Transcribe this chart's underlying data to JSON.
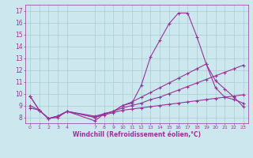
{
  "background_color": "#cce8ee",
  "grid_color": "#aacccc",
  "line_color": "#993399",
  "marker": "+",
  "marker_size": 3,
  "xlim": [
    -0.5,
    23.5
  ],
  "ylim": [
    7.5,
    17.5
  ],
  "yticks": [
    8,
    9,
    10,
    11,
    12,
    13,
    14,
    15,
    16,
    17
  ],
  "xticks": [
    0,
    1,
    2,
    3,
    4,
    7,
    8,
    9,
    10,
    11,
    12,
    13,
    14,
    15,
    16,
    17,
    18,
    19,
    20,
    21,
    22,
    23
  ],
  "xlabel": "Windchill (Refroidissement éolien,°C)",
  "series": [
    [
      9.8,
      8.6,
      7.9,
      8.0,
      8.5,
      null,
      null,
      7.7,
      8.3,
      8.5,
      9.0,
      9.2,
      10.7,
      13.1,
      14.5,
      15.9,
      16.8,
      16.8,
      14.8,
      12.5,
      11.1,
      10.4,
      9.7,
      8.9
    ],
    [
      9.8,
      8.6,
      7.9,
      8.1,
      8.5,
      null,
      null,
      8.1,
      8.3,
      8.5,
      9.0,
      9.3,
      9.7,
      10.1,
      10.5,
      10.9,
      11.3,
      11.7,
      12.1,
      12.5,
      10.5,
      9.7,
      9.5,
      9.2
    ],
    [
      9.0,
      8.6,
      7.9,
      8.1,
      8.5,
      null,
      null,
      8.0,
      8.3,
      8.5,
      8.8,
      9.0,
      9.2,
      9.5,
      9.7,
      10.0,
      10.3,
      10.6,
      10.9,
      11.2,
      11.5,
      11.8,
      12.1,
      12.4
    ],
    [
      8.8,
      8.6,
      7.9,
      8.1,
      8.5,
      null,
      null,
      8.0,
      8.2,
      8.4,
      8.6,
      8.7,
      8.8,
      8.9,
      9.0,
      9.1,
      9.2,
      9.3,
      9.4,
      9.5,
      9.6,
      9.7,
      9.8,
      9.9
    ]
  ]
}
